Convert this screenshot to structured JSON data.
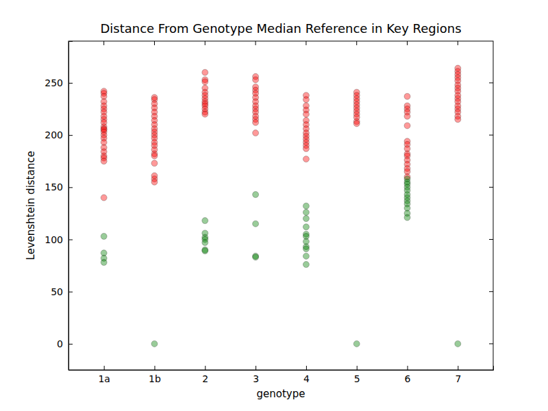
{
  "chart_data": {
    "type": "scatter",
    "title": "Distance From Genotype Median Reference in Key Regions",
    "x_label": "genotype",
    "y_label": "Levenshtein distance",
    "categories": [
      "1a",
      "1b",
      "2",
      "3",
      "4",
      "5",
      "6",
      "7"
    ],
    "ylim": [
      -25,
      290
    ],
    "yticks": [
      0,
      50,
      100,
      150,
      200,
      250
    ],
    "marker": "circle",
    "series": [
      {
        "color": "#ff0000",
        "x": [
          "1a",
          "1a",
          "1a",
          "1a",
          "1a",
          "1a",
          "1a",
          "1a",
          "1a",
          "1a",
          "1a",
          "1a",
          "1a",
          "1a",
          "1a",
          "1a",
          "1a",
          "1a",
          "1a",
          "1a",
          "1a",
          "1a",
          "1a",
          "1b",
          "1b",
          "1b",
          "1b",
          "1b",
          "1b",
          "1b",
          "1b",
          "1b",
          "1b",
          "1b",
          "1b",
          "1b",
          "1b",
          "1b",
          "1b",
          "1b",
          "1b",
          "1b",
          "1b",
          "1b",
          "2",
          "2",
          "2",
          "2",
          "2",
          "2",
          "2",
          "2",
          "2",
          "2",
          "2",
          "2",
          "2",
          "3",
          "3",
          "3",
          "3",
          "3",
          "3",
          "3",
          "3",
          "3",
          "3",
          "3",
          "3",
          "3",
          "3",
          "4",
          "4",
          "4",
          "4",
          "4",
          "4",
          "4",
          "4",
          "4",
          "4",
          "4",
          "4",
          "4",
          "4",
          "4",
          "5",
          "5",
          "5",
          "5",
          "5",
          "5",
          "5",
          "5",
          "5",
          "5",
          "5",
          "6",
          "6",
          "6",
          "6",
          "6",
          "6",
          "6",
          "6",
          "6",
          "6",
          "6",
          "6",
          "6",
          "6",
          "6",
          "6",
          "7",
          "7",
          "7",
          "7",
          "7",
          "7",
          "7",
          "7",
          "7",
          "7",
          "7",
          "7",
          "7",
          "7",
          "7",
          "7"
        ],
        "values": [
          242,
          240,
          237,
          232,
          228,
          225,
          222,
          218,
          215,
          212,
          208,
          206,
          205,
          203,
          200,
          197,
          193,
          188,
          184,
          180,
          178,
          175,
          140,
          236,
          234,
          230,
          226,
          222,
          218,
          214,
          210,
          206,
          203,
          200,
          197,
          193,
          190,
          186,
          182,
          180,
          173,
          161,
          158,
          155,
          260,
          253,
          251,
          245,
          241,
          238,
          235,
          232,
          230,
          228,
          225,
          222,
          220,
          256,
          253,
          246,
          243,
          240,
          236,
          232,
          228,
          225,
          222,
          218,
          215,
          212,
          202,
          238,
          234,
          228,
          224,
          220,
          214,
          210,
          206,
          202,
          199,
          196,
          193,
          190,
          187,
          177,
          241,
          238,
          235,
          232,
          229,
          226,
          223,
          220,
          217,
          213,
          211,
          237,
          228,
          225,
          222,
          218,
          209,
          194,
          191,
          187,
          182,
          180,
          176,
          172,
          168,
          165,
          160,
          264,
          261,
          258,
          255,
          252,
          248,
          245,
          242,
          238,
          235,
          232,
          228,
          225,
          222,
          218,
          215
        ]
      },
      {
        "color": "#008000",
        "x": [
          "1a",
          "1a",
          "1a",
          "1a",
          "1b",
          "2",
          "2",
          "2",
          "2",
          "2",
          "2",
          "2",
          "3",
          "3",
          "3",
          "3",
          "4",
          "4",
          "4",
          "4",
          "4",
          "4",
          "4",
          "4",
          "4",
          "4",
          "4",
          "5",
          "6",
          "6",
          "6",
          "6",
          "6",
          "6",
          "6",
          "6",
          "6",
          "6",
          "6",
          "6",
          "7"
        ],
        "values": [
          103,
          87,
          82,
          78,
          0,
          118,
          106,
          102,
          100,
          97,
          90,
          89,
          143,
          115,
          84,
          83,
          132,
          126,
          120,
          112,
          105,
          103,
          98,
          93,
          91,
          84,
          76,
          0,
          158,
          155,
          153,
          150,
          147,
          143,
          140,
          137,
          134,
          130,
          125,
          121,
          0
        ]
      }
    ]
  }
}
